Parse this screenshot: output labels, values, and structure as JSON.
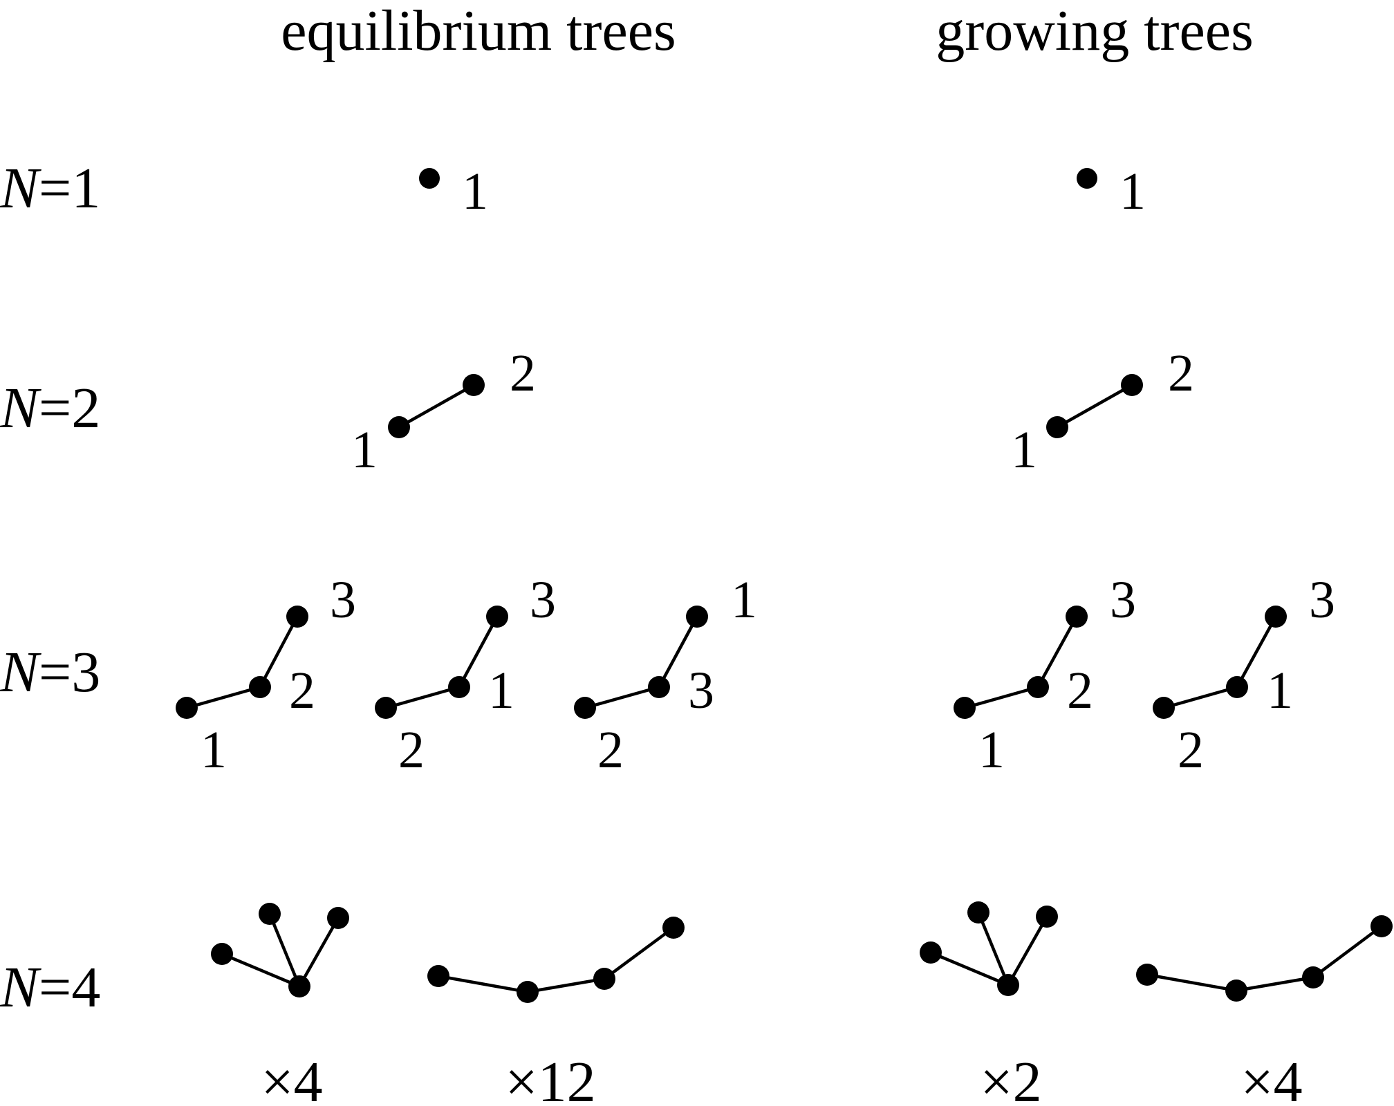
{
  "headers": {
    "left": "equilibrium trees",
    "right": "growing trees"
  },
  "rows": [
    {
      "var": "N",
      "eq": "=1"
    },
    {
      "var": "N",
      "eq": "=2"
    },
    {
      "var": "N",
      "eq": "=3"
    },
    {
      "var": "N",
      "eq": "=4"
    }
  ],
  "n1": {
    "eq_label": "1",
    "gr_label": "1"
  },
  "n2": {
    "eq_labels": [
      "1",
      "2"
    ],
    "gr_labels": [
      "1",
      "2"
    ]
  },
  "n3": {
    "eq_trees": [
      [
        "1",
        "2",
        "3"
      ],
      [
        "2",
        "1",
        "3"
      ],
      [
        "2",
        "3",
        "1"
      ]
    ],
    "gr_trees": [
      [
        "1",
        "2",
        "3"
      ],
      [
        "2",
        "1",
        "3"
      ]
    ]
  },
  "n4": {
    "multipliers": [
      "×4",
      "×12",
      "×2",
      "×4"
    ]
  }
}
